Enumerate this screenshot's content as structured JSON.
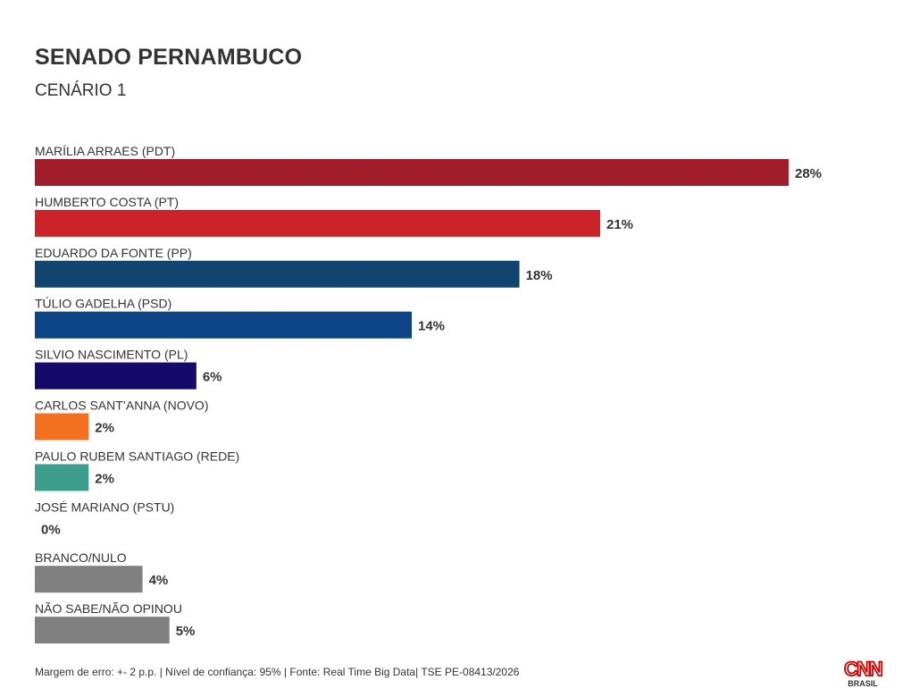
{
  "header": {
    "title": "SENADO PERNAMBUCO",
    "subtitle": "CENÁRIO 1"
  },
  "chart_data": {
    "type": "bar",
    "orientation": "horizontal",
    "title": "SENADO PERNAMBUCO",
    "subtitle": "CENÁRIO 1",
    "xlabel": "",
    "ylabel": "",
    "xlim": [
      0,
      28
    ],
    "grid": false,
    "legend": "none",
    "categories": [
      "MARÍLIA ARRAES (PDT)",
      "HUMBERTO COSTA (PT)",
      "EDUARDO DA FONTE (PP)",
      "TÚLIO GADELHA (PSD)",
      "SILVIO NASCIMENTO (PL)",
      "CARLOS SANT’ANNA (NOVO)",
      "PAULO RUBEM SANTIAGO (REDE)",
      "JOSÉ MARIANO (PSTU)",
      "BRANCO/NULO",
      "NÃO SABE/NÃO OPINOU"
    ],
    "values": [
      28,
      21,
      18,
      14,
      6,
      2,
      2,
      0,
      4,
      5
    ],
    "value_labels": [
      "28%",
      "21%",
      "18%",
      "14%",
      "6%",
      "2%",
      "2%",
      "0%",
      "4%",
      "5%"
    ],
    "colors": [
      "#a11d2b",
      "#cc2229",
      "#11446f",
      "#0c4486",
      "#150a6a",
      "#f37021",
      "#3d9e8c",
      "#8a8a8a",
      "#808080",
      "#808080"
    ]
  },
  "footer": {
    "note": "Margem de erro: +- 2 p.p. | Nível de confiança: 95% | Fonte: Real Time Big Data| TSE PE-08413/2026",
    "logo_text": "CNN",
    "logo_sub": "BRASIL",
    "logo_color": "#cc0000"
  }
}
